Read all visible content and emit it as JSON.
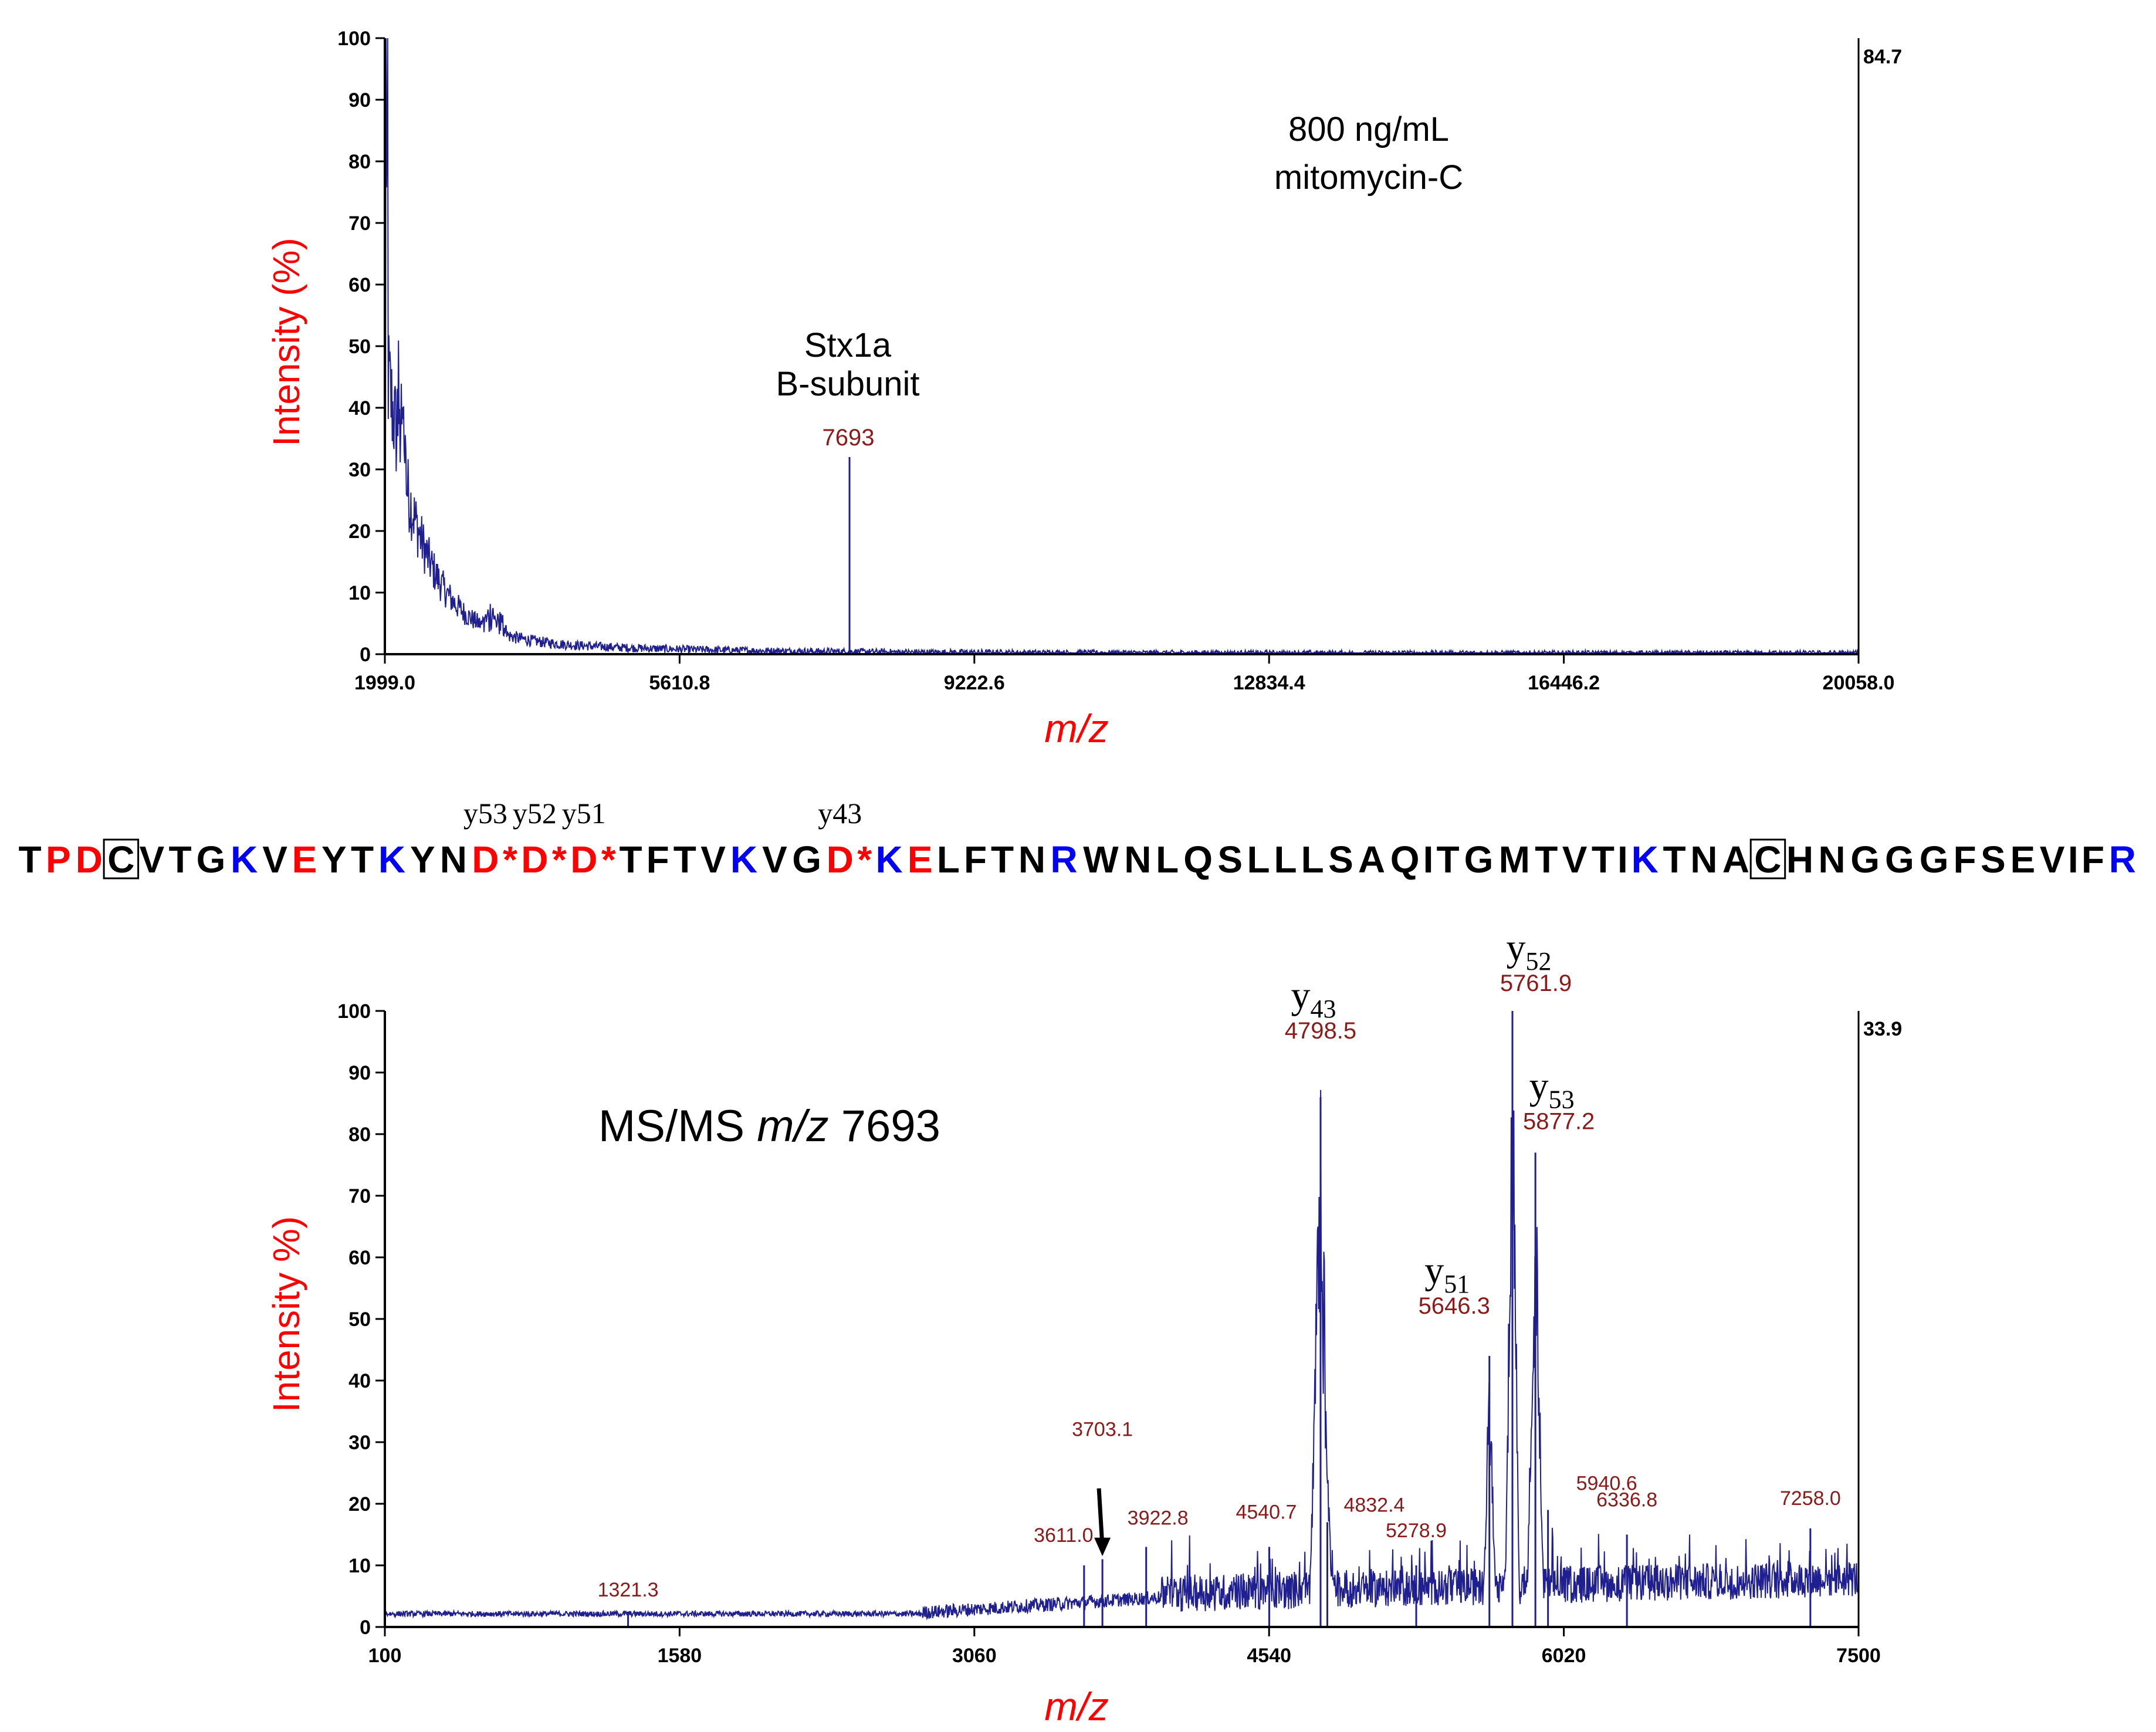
{
  "chart_data": [
    {
      "type": "line",
      "title": "",
      "xlabel": "m/z",
      "ylabel": "Intensity (%)",
      "xlim": [
        1999.0,
        20058.0
      ],
      "ylim": [
        0,
        100
      ],
      "xticks": [
        "1999.0",
        "5610.8",
        "9222.6",
        "12834.4",
        "16446.2",
        "20058.0"
      ],
      "yticks": [
        "0",
        "10",
        "20",
        "30",
        "40",
        "50",
        "60",
        "70",
        "80",
        "90",
        "100"
      ],
      "max_intensity_label": "84.7",
      "annotation": {
        "line1": "800 ng/mL",
        "line2": "mitomycin-C"
      },
      "peak_annotation": {
        "line1": "Stx1a",
        "line2": "B-subunit"
      },
      "peaks": [
        {
          "x": 7693,
          "y": 32,
          "label": "7693"
        }
      ],
      "line_color": "#1f1f8f"
    },
    {
      "type": "line",
      "title": "",
      "xlabel": "m/z",
      "ylabel": "Intensity %)",
      "xlim": [
        100,
        7500
      ],
      "ylim": [
        0,
        100
      ],
      "xticks": [
        "100",
        "1580",
        "3060",
        "4540",
        "6020",
        "7500"
      ],
      "yticks": [
        "0",
        "10",
        "20",
        "30",
        "40",
        "50",
        "60",
        "70",
        "80",
        "90",
        "100"
      ],
      "max_intensity_label": "33.9",
      "annotation": {
        "prefix": "MS/MS ",
        "italic": "m/z",
        "suffix": " 7693"
      },
      "peaks": [
        {
          "x": 1321.3,
          "y": 2.5,
          "label": "1321.3"
        },
        {
          "x": 3611.0,
          "y": 10,
          "label": "3611.0"
        },
        {
          "x": 3703.1,
          "y": 11,
          "label": "3703.1"
        },
        {
          "x": 3922.8,
          "y": 13,
          "label": "3922.8"
        },
        {
          "x": 4540.7,
          "y": 13,
          "label": "4540.7"
        },
        {
          "x": 4798.5,
          "y": 86,
          "label": "4798.5",
          "ion": "y",
          "ion_sub": "43"
        },
        {
          "x": 4832.4,
          "y": 17,
          "label": "4832.4"
        },
        {
          "x": 5278.9,
          "y": 10,
          "label": "5278.9"
        },
        {
          "x": 5646.3,
          "y": 44,
          "label": "5646.3",
          "ion": "y",
          "ion_sub": "51"
        },
        {
          "x": 5761.9,
          "y": 100,
          "label": "5761.9",
          "ion": "y",
          "ion_sub": "52"
        },
        {
          "x": 5877.2,
          "y": 77,
          "label": "5877.2",
          "ion": "y",
          "ion_sub": "53"
        },
        {
          "x": 5940.6,
          "y": 19,
          "label": "5940.6"
        },
        {
          "x": 6336.8,
          "y": 15,
          "label": "6336.8"
        },
        {
          "x": 7258.0,
          "y": 16,
          "label": "7258.0"
        }
      ],
      "line_color": "#1f1f8f"
    }
  ],
  "sequence": {
    "text": "TPDCVTGKVEYTKYND*D*D*TFTVKVGD*KELFTNRWNLQSLLLSAQITGMTVTIKTNACHNGGGFSEVIFR",
    "red_positions": [
      1,
      2,
      9,
      15,
      16,
      17,
      18,
      19,
      20,
      28,
      29,
      31
    ],
    "blue_positions": [
      7,
      12,
      25,
      30,
      36,
      56,
      72
    ],
    "boxed_positions": [
      3,
      60
    ],
    "ion_labels": [
      {
        "label": "y53",
        "after_index": 14
      },
      {
        "label": "y52",
        "after_index": 16
      },
      {
        "label": "y51",
        "after_index": 18
      },
      {
        "label": "y43",
        "after_index": 27
      }
    ]
  },
  "colors": {
    "red": "#ff0000",
    "blue": "#0000ff",
    "peak_label": "#8b1a1a"
  }
}
